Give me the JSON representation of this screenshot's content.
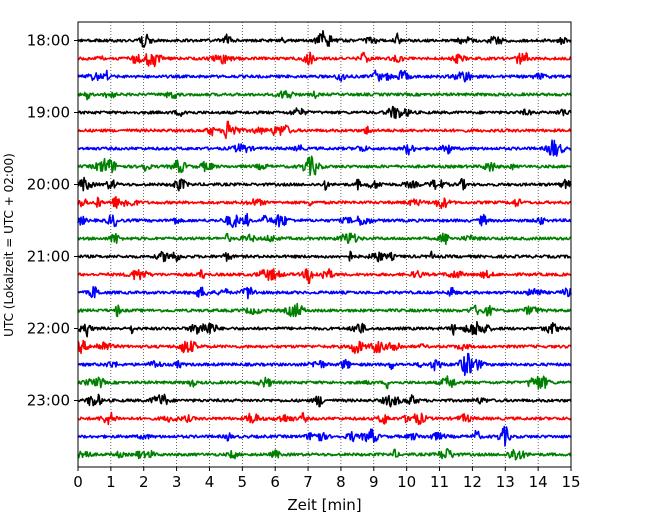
{
  "chart_data": {
    "type": "line",
    "title": "",
    "xlabel": "Zeit  [min]",
    "ylabel": "UTC (Lokalzeit = UTC + 02:00)",
    "xlim": [
      0,
      15
    ],
    "x_ticks": [
      0,
      1,
      2,
      3,
      4,
      5,
      6,
      7,
      8,
      9,
      10,
      11,
      12,
      13,
      14,
      15
    ],
    "x_tick_labels": [
      "0",
      "1",
      "2",
      "3",
      "4",
      "5",
      "6",
      "7",
      "8",
      "9",
      "10",
      "11",
      "12",
      "13",
      "14",
      "15"
    ],
    "y_tick_labels": [
      "18:00",
      "19:00",
      "20:00",
      "21:00",
      "22:00",
      "23:00"
    ],
    "grid": "vertical dotted",
    "trace_interval_minutes": 15,
    "trace_color_cycle": [
      "#000000",
      "#ff0000",
      "#0000ff",
      "#008000"
    ],
    "traces": [
      {
        "start": "18:00",
        "color": "#000000"
      },
      {
        "start": "18:15",
        "color": "#ff0000"
      },
      {
        "start": "18:30",
        "color": "#0000ff"
      },
      {
        "start": "18:45",
        "color": "#008000"
      },
      {
        "start": "19:00",
        "color": "#000000"
      },
      {
        "start": "19:15",
        "color": "#ff0000"
      },
      {
        "start": "19:30",
        "color": "#0000ff"
      },
      {
        "start": "19:45",
        "color": "#008000"
      },
      {
        "start": "20:00",
        "color": "#000000"
      },
      {
        "start": "20:15",
        "color": "#ff0000"
      },
      {
        "start": "20:30",
        "color": "#0000ff"
      },
      {
        "start": "20:45",
        "color": "#008000"
      },
      {
        "start": "21:00",
        "color": "#000000"
      },
      {
        "start": "21:15",
        "color": "#ff0000"
      },
      {
        "start": "21:30",
        "color": "#0000ff"
      },
      {
        "start": "21:45",
        "color": "#008000"
      },
      {
        "start": "22:00",
        "color": "#000000"
      },
      {
        "start": "22:15",
        "color": "#ff0000"
      },
      {
        "start": "22:30",
        "color": "#0000ff"
      },
      {
        "start": "22:45",
        "color": "#008000"
      },
      {
        "start": "23:00",
        "color": "#000000"
      },
      {
        "start": "23:15",
        "color": "#ff0000"
      },
      {
        "start": "23:30",
        "color": "#0000ff"
      },
      {
        "start": "23:45",
        "color": "#008000"
      }
    ]
  }
}
